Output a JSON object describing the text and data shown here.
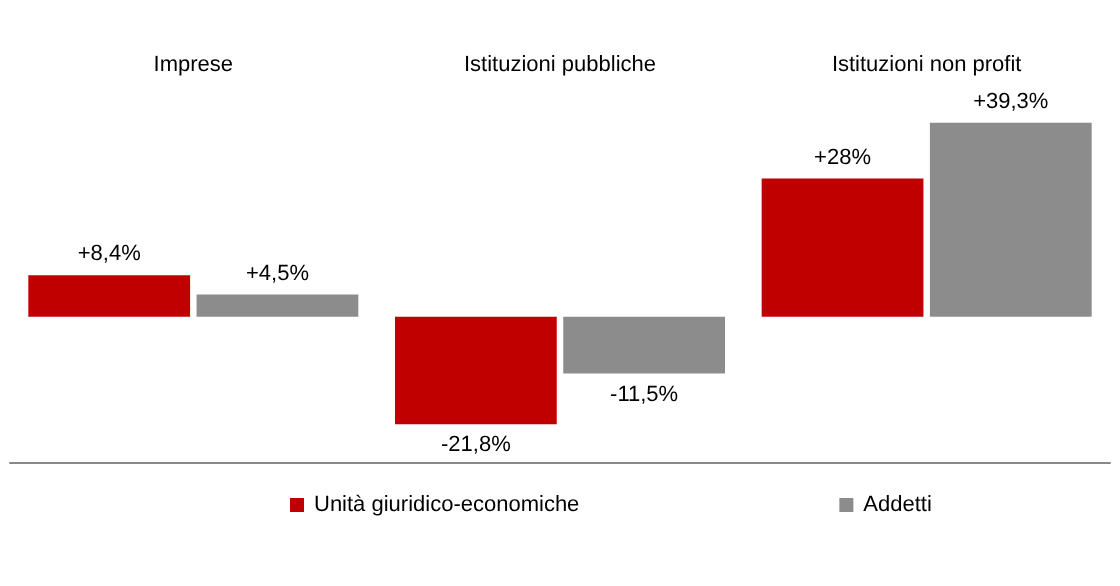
{
  "chart_data": {
    "type": "bar",
    "categories": [
      "Imprese",
      "Istituzioni pubbliche",
      "Istituzioni non profit"
    ],
    "series": [
      {
        "name": "Unità giuridico-economiche",
        "color": "#c00000",
        "values": [
          8.4,
          -21.8,
          28
        ],
        "value_labels": [
          "+8,4%",
          "-21,8%",
          "+28%"
        ]
      },
      {
        "name": "Addetti",
        "color": "#8c8c8c",
        "values": [
          4.5,
          -11.5,
          39.3
        ],
        "value_labels": [
          "+4,5%",
          "-11,5%",
          "+39,3%"
        ]
      }
    ],
    "legend": "bottom"
  }
}
